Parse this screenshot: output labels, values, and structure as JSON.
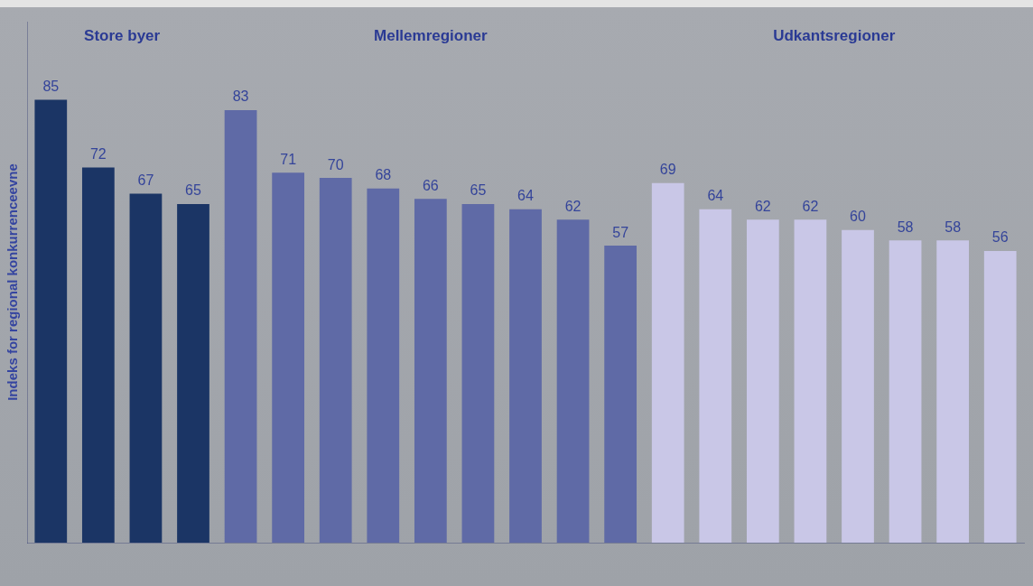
{
  "chart_data": {
    "type": "bar",
    "y_label": "Indeks for regional konkurrenceevne",
    "categories": [
      null,
      null,
      null,
      null,
      null,
      null,
      null,
      null,
      null,
      null,
      null,
      null,
      null,
      null,
      null,
      null,
      null,
      null,
      null,
      null,
      null
    ],
    "series": [
      {
        "name": "Store byer",
        "color": "#1b3565",
        "values": [
          85,
          72,
          67,
          65,
          null,
          null,
          null,
          null,
          null,
          null,
          null,
          null,
          null,
          null,
          null,
          null,
          null,
          null,
          null,
          null,
          null
        ]
      },
      {
        "name": "Mellemregioner",
        "color": "#5f6aa6",
        "values": [
          null,
          null,
          null,
          null,
          83,
          71,
          70,
          68,
          66,
          65,
          64,
          62,
          57,
          null,
          null,
          null,
          null,
          null,
          null,
          null,
          null
        ]
      },
      {
        "name": "Udkantsregioner",
        "color": "#c9c7e7",
        "values": [
          null,
          null,
          null,
          null,
          null,
          null,
          null,
          null,
          null,
          null,
          null,
          null,
          null,
          69,
          64,
          62,
          62,
          60,
          58,
          58,
          56
        ]
      }
    ],
    "ylim": [
      0,
      100
    ],
    "grid": false,
    "data_labels": true,
    "tick_labels": false
  }
}
